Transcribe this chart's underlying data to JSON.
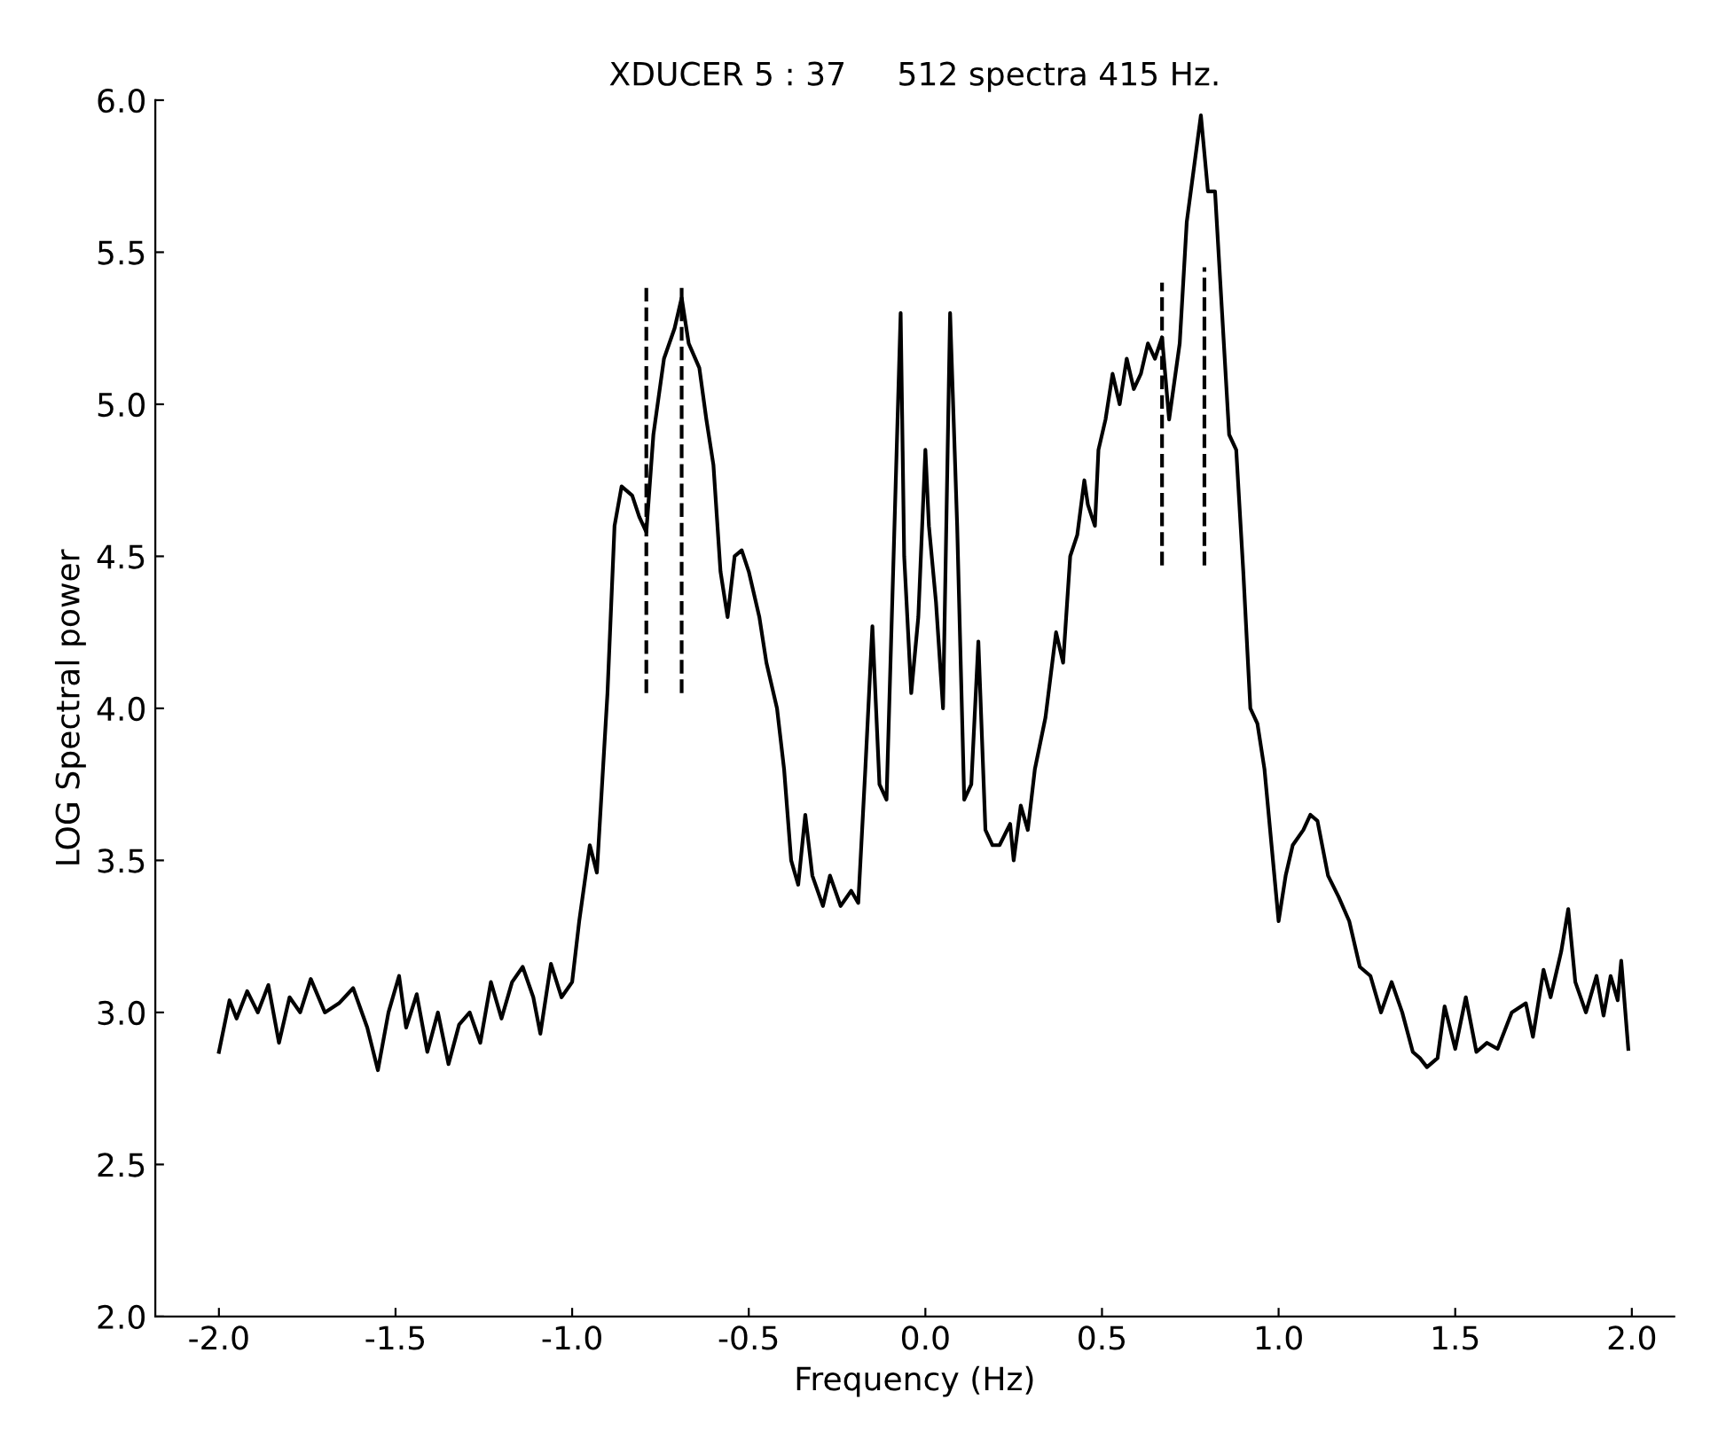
{
  "chart_data": {
    "type": "line",
    "title": "XDUCER 5 : 37     512 spectra 415 Hz.",
    "xlabel": "Frequency (Hz)",
    "ylabel": "LOG Spectral power",
    "xlim": [
      -2.18,
      2.12
    ],
    "ylim": [
      2.0,
      6.0
    ],
    "xticks": [
      {
        "value": -2.0,
        "label": "-2.0"
      },
      {
        "value": -1.5,
        "label": "-1.5"
      },
      {
        "value": -1.0,
        "label": "-1.0"
      },
      {
        "value": -0.5,
        "label": "-0.5"
      },
      {
        "value": 0.0,
        "label": "0.0"
      },
      {
        "value": 0.5,
        "label": "0.5"
      },
      {
        "value": 1.0,
        "label": "1.0"
      },
      {
        "value": 1.5,
        "label": "1.5"
      },
      {
        "value": 2.0,
        "label": "2.0"
      }
    ],
    "yticks": [
      {
        "value": 2.0,
        "label": "2.0"
      },
      {
        "value": 2.5,
        "label": "2.5"
      },
      {
        "value": 3.0,
        "label": "3.0"
      },
      {
        "value": 3.5,
        "label": "3.5"
      },
      {
        "value": 4.0,
        "label": "4.0"
      },
      {
        "value": 4.5,
        "label": "4.5"
      },
      {
        "value": 5.0,
        "label": "5.0"
      },
      {
        "value": 5.5,
        "label": "5.5"
      },
      {
        "value": 6.0,
        "label": "6.0"
      }
    ],
    "grid": false,
    "legend": false,
    "series": [
      {
        "color": "#000000",
        "line_style": "solid",
        "x": [
          -2.0,
          -1.97,
          -1.95,
          -1.92,
          -1.89,
          -1.86,
          -1.83,
          -1.8,
          -1.77,
          -1.74,
          -1.7,
          -1.66,
          -1.62,
          -1.58,
          -1.55,
          -1.52,
          -1.49,
          -1.47,
          -1.44,
          -1.41,
          -1.38,
          -1.35,
          -1.32,
          -1.29,
          -1.26,
          -1.23,
          -1.2,
          -1.17,
          -1.14,
          -1.11,
          -1.09,
          -1.06,
          -1.03,
          -1.0,
          -0.98,
          -0.95,
          -0.93,
          -0.9,
          -0.88,
          -0.86,
          -0.83,
          -0.81,
          -0.79,
          -0.77,
          -0.74,
          -0.71,
          -0.69,
          -0.67,
          -0.64,
          -0.62,
          -0.6,
          -0.58,
          -0.56,
          -0.54,
          -0.52,
          -0.5,
          -0.47,
          -0.45,
          -0.42,
          -0.4,
          -0.38,
          -0.36,
          -0.34,
          -0.32,
          -0.29,
          -0.27,
          -0.24,
          -0.21,
          -0.19,
          -0.17,
          -0.15,
          -0.13,
          -0.11,
          -0.09,
          -0.07,
          -0.06,
          -0.04,
          -0.02,
          0.0,
          0.01,
          0.03,
          0.05,
          0.07,
          0.09,
          0.11,
          0.13,
          0.15,
          0.17,
          0.19,
          0.21,
          0.24,
          0.25,
          0.27,
          0.29,
          0.31,
          0.34,
          0.37,
          0.39,
          0.41,
          0.43,
          0.45,
          0.46,
          0.48,
          0.49,
          0.51,
          0.53,
          0.55,
          0.57,
          0.59,
          0.61,
          0.63,
          0.65,
          0.67,
          0.69,
          0.72,
          0.74,
          0.78,
          0.8,
          0.82,
          0.84,
          0.86,
          0.88,
          0.9,
          0.92,
          0.94,
          0.96,
          0.98,
          1.0,
          1.02,
          1.04,
          1.07,
          1.09,
          1.11,
          1.14,
          1.17,
          1.2,
          1.23,
          1.26,
          1.29,
          1.32,
          1.35,
          1.38,
          1.4,
          1.42,
          1.45,
          1.47,
          1.5,
          1.53,
          1.56,
          1.59,
          1.62,
          1.66,
          1.7,
          1.72,
          1.75,
          1.77,
          1.8,
          1.82,
          1.84,
          1.87,
          1.9,
          1.92,
          1.94,
          1.96,
          1.97,
          1.99
        ],
        "values": [
          2.87,
          3.04,
          2.98,
          3.07,
          3.0,
          3.09,
          2.9,
          3.05,
          3.0,
          3.11,
          3.0,
          3.03,
          3.08,
          2.95,
          2.81,
          3.0,
          3.12,
          2.95,
          3.06,
          2.87,
          3.0,
          2.83,
          2.96,
          3.0,
          2.9,
          3.1,
          2.98,
          3.1,
          3.15,
          3.05,
          2.93,
          3.16,
          3.05,
          3.1,
          3.3,
          3.55,
          3.46,
          4.05,
          4.6,
          4.73,
          4.7,
          4.63,
          4.58,
          4.9,
          5.15,
          5.25,
          5.35,
          5.2,
          5.12,
          4.95,
          4.8,
          4.45,
          4.3,
          4.5,
          4.52,
          4.45,
          4.3,
          4.15,
          4.0,
          3.8,
          3.5,
          3.42,
          3.65,
          3.45,
          3.35,
          3.45,
          3.35,
          3.4,
          3.36,
          3.8,
          4.27,
          3.75,
          3.7,
          4.5,
          5.3,
          4.5,
          4.05,
          4.3,
          4.85,
          4.6,
          4.35,
          4.0,
          5.3,
          4.6,
          3.7,
          3.75,
          4.22,
          3.6,
          3.55,
          3.55,
          3.62,
          3.5,
          3.68,
          3.6,
          3.8,
          3.97,
          4.25,
          4.15,
          4.5,
          4.57,
          4.75,
          4.67,
          4.6,
          4.85,
          4.95,
          5.1,
          5.0,
          5.15,
          5.05,
          5.1,
          5.2,
          5.15,
          5.22,
          4.95,
          5.2,
          5.6,
          5.95,
          5.7,
          5.7,
          5.3,
          4.9,
          4.85,
          4.45,
          4.0,
          3.95,
          3.8,
          3.55,
          3.3,
          3.45,
          3.55,
          3.6,
          3.65,
          3.63,
          3.45,
          3.38,
          3.3,
          3.15,
          3.12,
          3.0,
          3.1,
          3.0,
          2.87,
          2.85,
          2.82,
          2.85,
          3.02,
          2.88,
          3.05,
          2.87,
          2.9,
          2.88,
          3.0,
          3.03,
          2.92,
          3.14,
          3.05,
          3.2,
          3.34,
          3.1,
          3.0,
          3.12,
          2.99,
          3.12,
          3.04,
          3.17,
          2.88
        ]
      },
      {
        "color": "#000000",
        "line_style": "dashed",
        "x": [
          -0.79,
          -0.79
        ],
        "values": [
          4.05,
          5.4
        ]
      },
      {
        "color": "#000000",
        "line_style": "dashed",
        "x": [
          -0.69,
          -0.69
        ],
        "values": [
          4.05,
          5.4
        ]
      },
      {
        "color": "#000000",
        "line_style": "dashed",
        "x": [
          0.67,
          0.67
        ],
        "values": [
          4.47,
          5.4
        ]
      },
      {
        "color": "#000000",
        "line_style": "dashed",
        "x": [
          0.79,
          0.79
        ],
        "values": [
          4.47,
          5.45
        ]
      }
    ]
  }
}
